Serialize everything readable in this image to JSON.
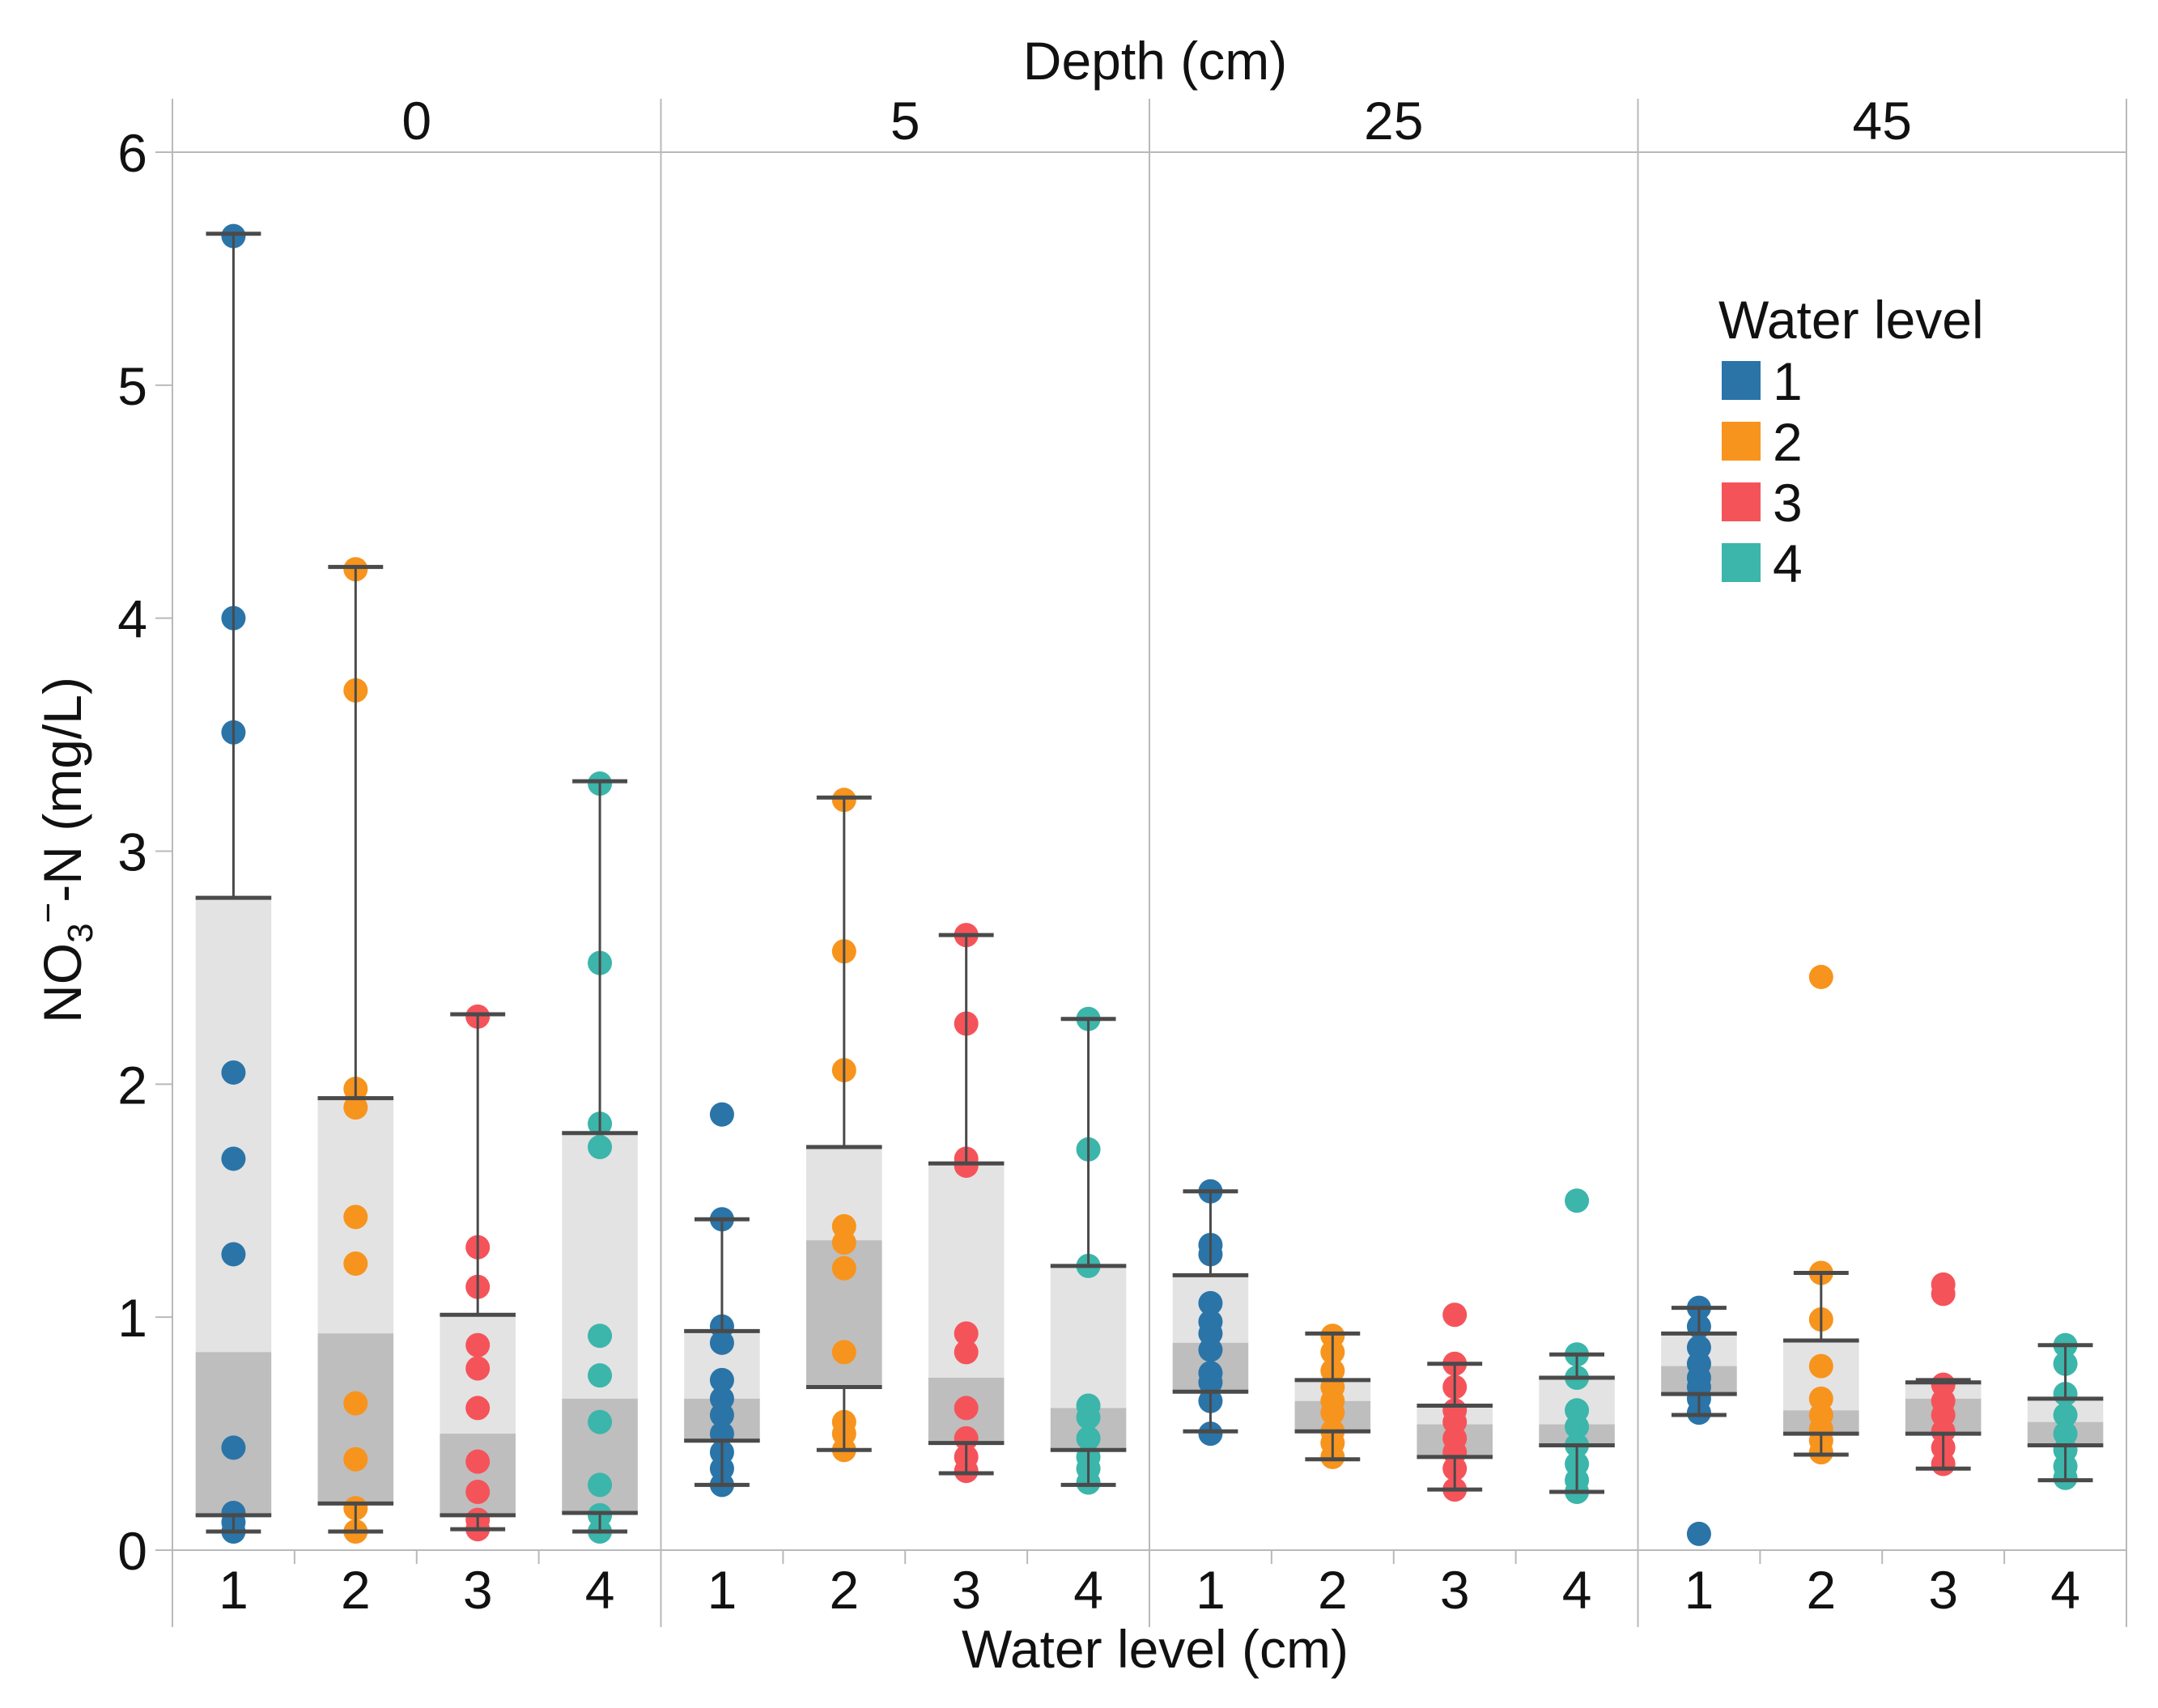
{
  "chart_data": {
    "type": "box",
    "title": "Depth (cm)",
    "xlabel": "Water level (cm)",
    "ylabel_main": "NO",
    "ylabel_sub": "3",
    "ylabel_sup": "−",
    "ylabel_rest": "-N (mg/L)",
    "ylim": [
      0,
      6.25
    ],
    "y_ticks": [
      "0",
      "1",
      "2",
      "3",
      "4",
      "5",
      "6"
    ],
    "y_tick_values": [
      0,
      1,
      2,
      3,
      4,
      5,
      6
    ],
    "categories": [
      "1",
      "2",
      "3",
      "4"
    ],
    "colors": {
      "1": "#2a74a8",
      "2": "#f7941d",
      "3": "#f5535a",
      "4": "#3cb5ab"
    },
    "legend": {
      "title": "Water level",
      "entries": [
        "1",
        "2",
        "3",
        "4"
      ],
      "position": "top-right"
    },
    "panels": [
      {
        "depth": "0",
        "groups": [
          {
            "level": "1",
            "whisker_low": 0.08,
            "q1": 0.15,
            "median": 0.85,
            "q3": 2.8,
            "whisker_high": 5.65,
            "points": [
              5.64,
              4.0,
              3.51,
              2.05,
              1.68,
              1.27,
              0.44,
              0.16,
              0.12,
              0.08
            ]
          },
          {
            "level": "2",
            "whisker_low": 0.08,
            "q1": 0.2,
            "median": 0.93,
            "q3": 1.94,
            "whisker_high": 4.22,
            "points": [
              4.21,
              3.69,
              1.98,
              1.9,
              1.43,
              1.23,
              0.63,
              0.39,
              0.18,
              0.08
            ]
          },
          {
            "level": "3",
            "whisker_low": 0.09,
            "q1": 0.15,
            "median": 0.5,
            "q3": 1.01,
            "whisker_high": 2.3,
            "points": [
              2.29,
              1.3,
              1.13,
              0.88,
              0.78,
              0.61,
              0.38,
              0.25,
              0.13,
              0.09
            ]
          },
          {
            "level": "4",
            "whisker_low": 0.08,
            "q1": 0.16,
            "median": 0.65,
            "q3": 1.79,
            "whisker_high": 3.3,
            "points": [
              3.29,
              2.52,
              1.83,
              1.73,
              0.92,
              0.75,
              0.55,
              0.28,
              0.15,
              0.08
            ]
          }
        ]
      },
      {
        "depth": "5",
        "groups": [
          {
            "level": "1",
            "whisker_low": 0.28,
            "q1": 0.47,
            "median": 0.65,
            "q3": 0.94,
            "whisker_high": 1.42,
            "points": [
              1.87,
              1.42,
              0.96,
              0.89,
              0.73,
              0.65,
              0.58,
              0.5,
              0.42,
              0.35,
              0.28
            ]
          },
          {
            "level": "2",
            "whisker_low": 0.43,
            "q1": 0.7,
            "median": 1.33,
            "q3": 1.73,
            "whisker_high": 3.23,
            "points": [
              3.22,
              2.57,
              2.06,
              1.39,
              1.32,
              1.21,
              0.85,
              0.55,
              0.5,
              0.43
            ]
          },
          {
            "level": "3",
            "whisker_low": 0.33,
            "q1": 0.46,
            "median": 0.74,
            "q3": 1.66,
            "whisker_high": 2.64,
            "points": [
              2.64,
              2.26,
              1.68,
              1.65,
              0.93,
              0.85,
              0.61,
              0.48,
              0.4,
              0.34
            ]
          },
          {
            "level": "4",
            "whisker_low": 0.28,
            "q1": 0.43,
            "median": 0.61,
            "q3": 1.22,
            "whisker_high": 2.28,
            "points": [
              2.28,
              1.72,
              1.22,
              0.62,
              0.57,
              0.48,
              0.4,
              0.35,
              0.29
            ]
          }
        ]
      },
      {
        "depth": "25",
        "groups": [
          {
            "level": "1",
            "whisker_low": 0.51,
            "q1": 0.68,
            "median": 0.89,
            "q3": 1.18,
            "whisker_high": 1.54,
            "points": [
              1.54,
              1.31,
              1.27,
              1.06,
              0.98,
              0.93,
              0.86,
              0.76,
              0.72,
              0.64,
              0.5
            ]
          },
          {
            "level": "2",
            "whisker_low": 0.39,
            "q1": 0.51,
            "median": 0.64,
            "q3": 0.73,
            "whisker_high": 0.93,
            "points": [
              0.92,
              0.85,
              0.77,
              0.7,
              0.64,
              0.59,
              0.51,
              0.46,
              0.4
            ]
          },
          {
            "level": "3",
            "whisker_low": 0.26,
            "q1": 0.4,
            "median": 0.54,
            "q3": 0.62,
            "whisker_high": 0.8,
            "points": [
              1.01,
              0.8,
              0.7,
              0.6,
              0.55,
              0.48,
              0.42,
              0.35,
              0.26
            ]
          },
          {
            "level": "4",
            "whisker_low": 0.25,
            "q1": 0.45,
            "median": 0.54,
            "q3": 0.74,
            "whisker_high": 0.84,
            "points": [
              1.5,
              0.84,
              0.74,
              0.6,
              0.53,
              0.45,
              0.37,
              0.3,
              0.25
            ]
          }
        ]
      },
      {
        "depth": "45",
        "groups": [
          {
            "level": "1",
            "whisker_low": 0.58,
            "q1": 0.67,
            "median": 0.79,
            "q3": 0.93,
            "whisker_high": 1.04,
            "points": [
              1.04,
              0.96,
              0.87,
              0.8,
              0.74,
              0.7,
              0.65,
              0.59,
              0.07
            ]
          },
          {
            "level": "2",
            "whisker_low": 0.41,
            "q1": 0.5,
            "median": 0.6,
            "q3": 0.9,
            "whisker_high": 1.19,
            "points": [
              2.46,
              1.19,
              0.99,
              0.79,
              0.65,
              0.58,
              0.52,
              0.47,
              0.42
            ]
          },
          {
            "level": "3",
            "whisker_low": 0.35,
            "q1": 0.5,
            "median": 0.65,
            "q3": 0.72,
            "whisker_high": 0.73,
            "points": [
              1.14,
              1.1,
              0.71,
              0.64,
              0.58,
              0.51,
              0.44,
              0.37
            ]
          },
          {
            "level": "4",
            "whisker_low": 0.3,
            "q1": 0.45,
            "median": 0.55,
            "q3": 0.65,
            "whisker_high": 0.88,
            "points": [
              0.88,
              0.8,
              0.67,
              0.58,
              0.5,
              0.43,
              0.36,
              0.31
            ]
          }
        ]
      }
    ]
  }
}
